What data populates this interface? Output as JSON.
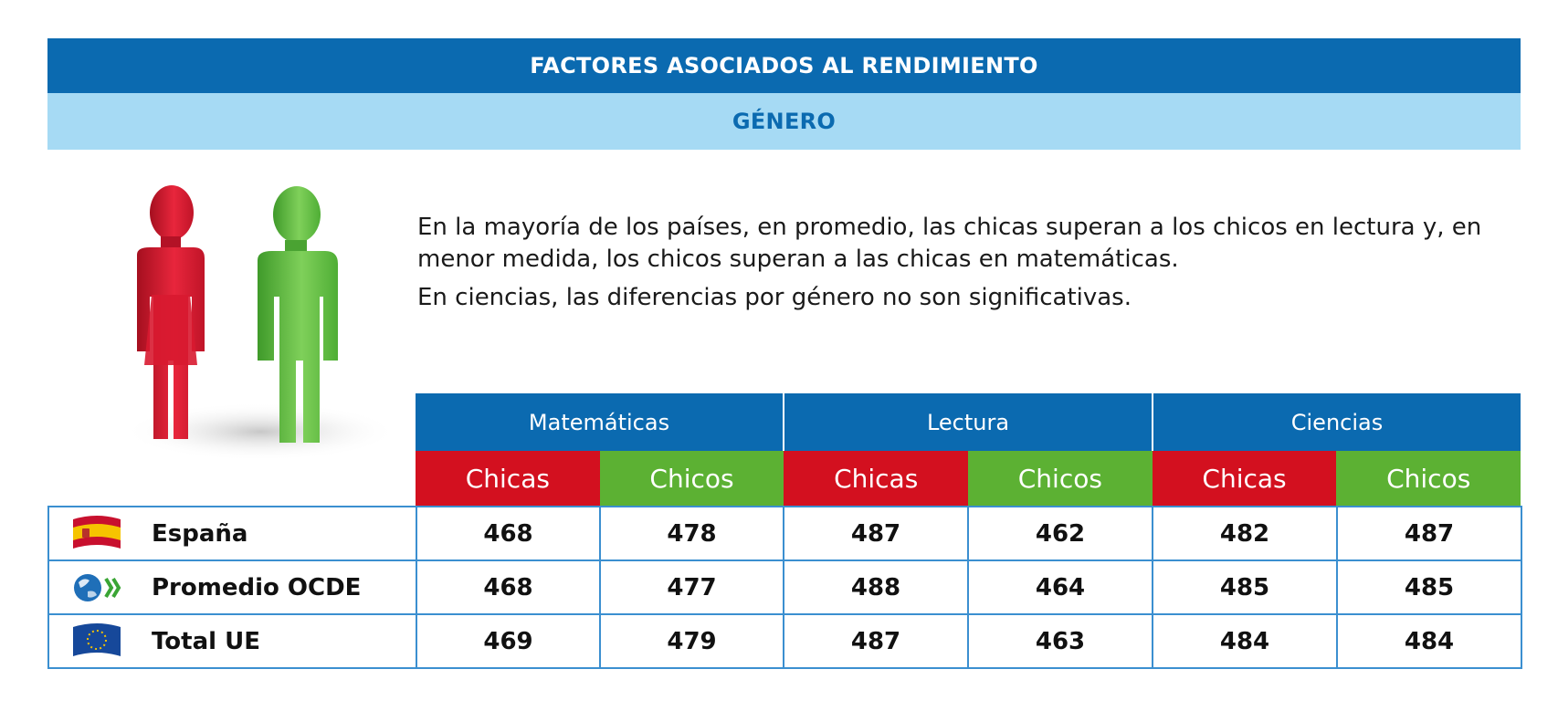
{
  "header": {
    "title": "FACTORES ASOCIADOS AL RENDIMIENTO",
    "subtitle": "GÉNERO"
  },
  "intro": {
    "line1": "En la mayoría de los países, en promedio, las chicas superan a los chicos en lectura y, en menor medida, los chicos superan a las chicas en matemáticas.",
    "line2": "En ciencias, las diferencias por género no son significativas."
  },
  "table": {
    "subjects": [
      "Matemáticas",
      "Lectura",
      "Ciencias"
    ],
    "genders": [
      "Chicas",
      "Chicos",
      "Chicas",
      "Chicos",
      "Chicas",
      "Chicos"
    ],
    "rows": [
      {
        "label": "España",
        "icon": "spain-flag-icon",
        "values": [
          "468",
          "478",
          "487",
          "462",
          "482",
          "487"
        ]
      },
      {
        "label": "Promedio OCDE",
        "icon": "oecd-logo-icon",
        "values": [
          "468",
          "477",
          "488",
          "464",
          "485",
          "485"
        ]
      },
      {
        "label": "Total UE",
        "icon": "eu-flag-icon",
        "values": [
          "469",
          "479",
          "487",
          "463",
          "484",
          "484"
        ]
      }
    ]
  },
  "colors": {
    "header_blue": "#0b6ab0",
    "sub_blue": "#a6daf4",
    "girls_red": "#d3101f",
    "boys_green": "#5cb133",
    "border_blue": "#3b8fd0"
  }
}
